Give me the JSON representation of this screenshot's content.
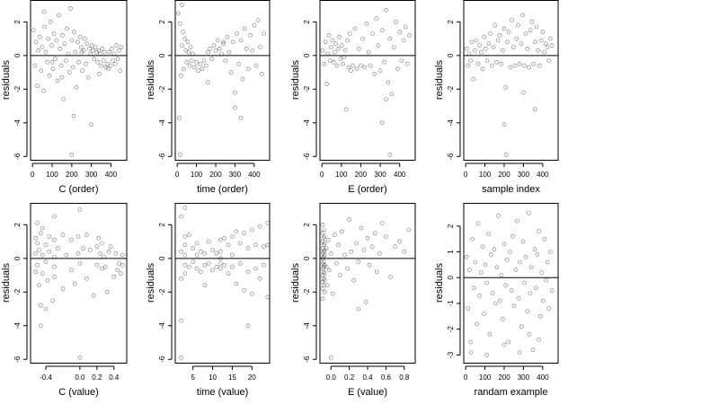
{
  "figure": {
    "colors": {
      "background": "#ffffff",
      "axes": "#000000",
      "points": "#000000"
    }
  },
  "chart_data": [
    {
      "type": "scatter",
      "xlabel": "C (order)",
      "ylabel": "residuals",
      "xlim": [
        -10,
        480
      ],
      "ylim": [
        -6.2,
        3.3
      ],
      "xticks": [
        0,
        100,
        200,
        300,
        400
      ],
      "xtick_labels": [
        "0",
        "100",
        "200",
        "300",
        "400"
      ],
      "yticks": [
        -6,
        -4,
        -2,
        0,
        2
      ],
      "ytick_labels": [
        "-6",
        "-4",
        "-2",
        "0",
        "2"
      ],
      "hline": 0,
      "marker": "open-circle",
      "x": [
        5,
        12,
        18,
        25,
        30,
        38,
        44,
        50,
        56,
        62,
        68,
        75,
        80,
        86,
        92,
        98,
        104,
        110,
        116,
        122,
        128,
        134,
        140,
        146,
        152,
        158,
        164,
        170,
        176,
        182,
        188,
        194,
        200,
        206,
        212,
        218,
        224,
        230,
        236,
        242,
        248,
        254,
        260,
        266,
        272,
        278,
        284,
        290,
        296,
        302,
        308,
        314,
        320,
        326,
        332,
        338,
        344,
        350,
        356,
        362,
        368,
        374,
        380,
        386,
        392,
        398,
        404,
        410,
        416,
        422,
        428,
        434,
        440,
        446,
        452,
        100,
        150,
        200,
        250,
        300,
        60,
        210,
        340
      ],
      "y": [
        1.5,
        -0.6,
        0.8,
        -1.8,
        0.3,
        1.1,
        -0.9,
        0.5,
        -2.1,
        1.7,
        0.2,
        -0.4,
        1.0,
        -1.2,
        2.0,
        0.6,
        -0.8,
        1.3,
        -0.2,
        0.9,
        -1.5,
        2.4,
        0.4,
        -0.6,
        1.2,
        -2.6,
        0.7,
        -0.3,
        1.6,
        0.1,
        -1.0,
        2.8,
        0.9,
        -0.7,
        1.4,
        0.2,
        -1.9,
        0.8,
        -0.4,
        1.1,
        0.5,
        -0.9,
        0.3,
        1.0,
        -0.5,
        0.7,
        -1.3,
        0.4,
        0.1,
        0.6,
        0.3,
        -0.2,
        0.5,
        0.2,
        -0.4,
        0.3,
        0.1,
        -0.6,
        0.4,
        -0.3,
        0.2,
        -0.7,
        -0.5,
        -0.8,
        0.2,
        -0.6,
        0.4,
        -0.3,
        0.1,
        -0.5,
        0.6,
        -0.2,
        0.3,
        -0.9,
        0.5,
        -0.4,
        -1.3,
        -5.9,
        0.2,
        -4.1,
        2.6,
        -3.6,
        -1.1
      ]
    },
    {
      "type": "scatter",
      "xlabel": "time (order)",
      "ylabel": "residuals",
      "xlim": [
        -10,
        480
      ],
      "ylim": [
        -6.2,
        3.3
      ],
      "xticks": [
        0,
        100,
        200,
        300,
        400
      ],
      "xtick_labels": [
        "0",
        "100",
        "200",
        "300",
        "400"
      ],
      "yticks": [
        -6,
        -4,
        -2,
        0,
        2
      ],
      "ytick_labels": [
        "-6",
        "-4",
        "-2",
        "0",
        "2"
      ],
      "hline": 0,
      "marker": "open-circle",
      "x": [
        5,
        10,
        15,
        20,
        25,
        30,
        35,
        40,
        45,
        50,
        55,
        60,
        65,
        70,
        75,
        80,
        90,
        100,
        110,
        120,
        130,
        140,
        150,
        160,
        170,
        180,
        190,
        200,
        210,
        220,
        230,
        240,
        250,
        260,
        270,
        280,
        290,
        300,
        310,
        320,
        330,
        340,
        350,
        360,
        370,
        380,
        390,
        400,
        410,
        420,
        430,
        440,
        450,
        15,
        25,
        300,
        330,
        160,
        240
      ],
      "y": [
        2.5,
        -3.7,
        1.9,
        -1.2,
        0.6,
        1.4,
        -0.8,
        1.0,
        0.3,
        -0.4,
        0.8,
        0.2,
        -0.6,
        0.5,
        -0.3,
        0.1,
        -0.7,
        -0.4,
        -0.9,
        -0.5,
        -0.8,
        -0.3,
        -0.6,
        0.2,
        0.4,
        -0.2,
        0.6,
        0.3,
        0.9,
        0.4,
        0.1,
        0.7,
        -0.3,
        1.1,
        0.2,
        -1.0,
        0.8,
        -2.2,
        1.3,
        -0.5,
        0.9,
        -1.4,
        1.6,
        0.4,
        -0.8,
        1.2,
        0.3,
        1.8,
        -0.6,
        2.1,
        0.5,
        -1.1,
        1.3,
        -5.9,
        3.0,
        -3.1,
        -3.7,
        -1.6,
        0.8
      ]
    },
    {
      "type": "scatter",
      "xlabel": "E (order)",
      "ylabel": "residuals",
      "xlim": [
        -10,
        480
      ],
      "ylim": [
        -6.2,
        3.3
      ],
      "xticks": [
        0,
        100,
        200,
        300,
        400
      ],
      "xtick_labels": [
        "0",
        "100",
        "200",
        "300",
        "400"
      ],
      "yticks": [
        -6,
        -4,
        -2,
        0,
        2
      ],
      "ytick_labels": [
        "-6",
        "-4",
        "-2",
        "0",
        "2"
      ],
      "hline": 0,
      "marker": "open-circle",
      "x": [
        5,
        12,
        18,
        25,
        30,
        36,
        42,
        48,
        54,
        60,
        66,
        72,
        78,
        84,
        90,
        96,
        102,
        108,
        114,
        120,
        126,
        132,
        138,
        144,
        150,
        160,
        170,
        180,
        190,
        200,
        210,
        220,
        230,
        240,
        250,
        260,
        270,
        280,
        290,
        300,
        310,
        320,
        330,
        340,
        350,
        360,
        370,
        380,
        390,
        400,
        410,
        420,
        430,
        440,
        450,
        350,
        310,
        330
      ],
      "y": [
        0.3,
        -0.5,
        0.8,
        -1.7,
        0.1,
        1.2,
        -0.3,
        0.5,
        0.9,
        -0.4,
        0.2,
        0.7,
        -0.6,
        0.4,
        1.1,
        -0.2,
        0.6,
        -0.5,
        -0.1,
        0.3,
        -3.2,
        0.9,
        -0.7,
        1.3,
        -0.9,
        -0.6,
        1.6,
        -0.8,
        0.4,
        -0.6,
        1.0,
        -0.7,
        1.9,
        0.2,
        -0.6,
        1.3,
        -1.1,
        2.2,
        0.6,
        -0.9,
        1.5,
        -0.4,
        2.7,
        -1.6,
        1.0,
        -2.3,
        0.5,
        2.0,
        -0.8,
        1.4,
        -0.3,
        0.9,
        1.7,
        -0.5,
        1.2,
        -5.9,
        -4.0,
        -2.6
      ]
    },
    {
      "type": "scatter",
      "xlabel": "sample index",
      "ylabel": "residuals",
      "xlim": [
        -10,
        480
      ],
      "ylim": [
        -6.2,
        3.3
      ],
      "xticks": [
        0,
        100,
        200,
        300,
        400
      ],
      "xtick_labels": [
        "0",
        "100",
        "200",
        "300",
        "400"
      ],
      "yticks": [
        -6,
        -4,
        -2,
        0,
        2
      ],
      "ytick_labels": [
        "-6",
        "-4",
        "-2",
        "0",
        "2"
      ],
      "hline": 0,
      "marker": "open-circle",
      "x": [
        5,
        12,
        18,
        25,
        32,
        40,
        48,
        56,
        64,
        72,
        80,
        88,
        96,
        104,
        112,
        120,
        128,
        136,
        144,
        152,
        160,
        168,
        176,
        184,
        192,
        200,
        208,
        216,
        224,
        232,
        240,
        248,
        256,
        264,
        272,
        280,
        288,
        296,
        304,
        312,
        320,
        328,
        336,
        344,
        352,
        360,
        368,
        376,
        384,
        392,
        400,
        408,
        416,
        424,
        432,
        440,
        448,
        200,
        210,
        360,
        300
      ],
      "y": [
        0.4,
        -0.6,
        0.1,
        -0.3,
        0.8,
        -1.4,
        0.3,
        0.9,
        -0.5,
        0.6,
        0.2,
        -0.8,
        1.1,
        0.4,
        -0.3,
        0.7,
        1.3,
        -0.6,
        0.5,
        1.8,
        -0.4,
        0.9,
        1.2,
        -0.5,
        0.3,
        1.6,
        -1.9,
        0.8,
        1.4,
        -0.7,
        2.1,
        0.5,
        -0.6,
        1.0,
        1.8,
        -0.5,
        0.7,
        2.4,
        -0.6,
        1.3,
        0.4,
        -0.7,
        1.5,
        2.0,
        -0.5,
        0.8,
        1.7,
        0.3,
        -0.6,
        0.9,
        1.4,
        0.2,
        0.7,
        0.5,
        -0.3,
        1.0,
        0.6,
        -4.1,
        -5.9,
        -3.2,
        -2.2
      ]
    },
    {
      "type": "scatter",
      "xlabel": "C (value)",
      "ylabel": "residuals",
      "xlim": [
        -0.58,
        0.55
      ],
      "ylim": [
        -6.2,
        3.3
      ],
      "xticks": [
        -0.4,
        0.0,
        0.2,
        0.4
      ],
      "xtick_labels": [
        "-0.4",
        "0.0",
        "0.2",
        "0.4"
      ],
      "yticks": [
        -6,
        -4,
        -2,
        0,
        2
      ],
      "ytick_labels": [
        "-6",
        "-4",
        "-2",
        "0",
        "2"
      ],
      "hline": 0,
      "marker": "open-circle",
      "x": [
        -0.52,
        -0.52,
        -0.52,
        -0.5,
        -0.5,
        -0.5,
        -0.48,
        -0.48,
        -0.46,
        -0.46,
        -0.44,
        -0.44,
        -0.44,
        -0.4,
        -0.4,
        -0.38,
        -0.36,
        -0.36,
        -0.32,
        -0.3,
        -0.3,
        -0.3,
        -0.3,
        -0.3,
        -0.26,
        -0.2,
        -0.2,
        -0.16,
        -0.1,
        -0.1,
        -0.06,
        -0.02,
        -0.02,
        0.0,
        0.0,
        0.04,
        0.08,
        0.08,
        0.12,
        0.16,
        0.2,
        0.2,
        0.22,
        0.24,
        0.26,
        0.26,
        0.28,
        0.3,
        0.32,
        0.34,
        0.36,
        0.4,
        0.42,
        0.44,
        0.46,
        0.48,
        0.5,
        0.5,
        -0.46,
        0.0,
        -0.4
      ],
      "y": [
        1.2,
        0.3,
        -0.8,
        2.1,
        -0.4,
        0.9,
        -1.6,
        0.5,
        -2.8,
        1.5,
        0.2,
        -0.9,
        1.8,
        -0.2,
        0.8,
        -1.3,
        0.4,
        1.3,
        -2.5,
        2.5,
        0.1,
        -0.5,
        1.1,
        -1.1,
        0.6,
        -1.8,
        1.4,
        0.2,
        -0.7,
        1.1,
        -1.5,
        0.3,
        1.3,
        -0.3,
        2.9,
        0.6,
        -1.2,
        1.4,
        0.5,
        -2.2,
        0.7,
        -0.4,
        1.2,
        0.3,
        -0.6,
        0.9,
        0.1,
        -0.5,
        -2.0,
        0.4,
        0.7,
        -1.1,
        0.3,
        -0.7,
        -0.3,
        -0.9,
        -0.4,
        0.2,
        -4.0,
        -5.9,
        -3.0
      ]
    },
    {
      "type": "scatter",
      "xlabel": "time (value)",
      "ylabel": "residuals",
      "xlim": [
        0.5,
        24.5
      ],
      "ylim": [
        -6.2,
        3.3
      ],
      "xticks": [
        5,
        10,
        15,
        20
      ],
      "xtick_labels": [
        "5",
        "10",
        "15",
        "20"
      ],
      "yticks": [
        -6,
        -4,
        -2,
        0,
        2
      ],
      "ytick_labels": [
        "-6",
        "-4",
        "-2",
        "0",
        "2"
      ],
      "hline": 0,
      "marker": "open-circle",
      "x": [
        2,
        2,
        2,
        2,
        3,
        3,
        3,
        3,
        3,
        4,
        4,
        5,
        5,
        6,
        6,
        6,
        7,
        7,
        8,
        8,
        8,
        9,
        9,
        10,
        10,
        11,
        11,
        12,
        12,
        12,
        12,
        13,
        13,
        14,
        14,
        15,
        15,
        15,
        16,
        16,
        17,
        17,
        18,
        18,
        19,
        19,
        20,
        20,
        21,
        21,
        22,
        22,
        23,
        23,
        24,
        24,
        24,
        2,
        3,
        19,
        12
      ],
      "y": [
        2.5,
        0.4,
        -1.2,
        -3.7,
        1.3,
        -0.4,
        0.8,
        -0.9,
        0.2,
        1.4,
        -0.5,
        0.6,
        -0.2,
        0.9,
        -0.6,
        0.2,
        -0.8,
        0.4,
        -1.6,
        0.3,
        -0.4,
        1.0,
        -0.3,
        -0.7,
        0.5,
        -0.5,
        0.3,
        -0.6,
        0.4,
        1.1,
        -0.3,
        1.2,
        -0.4,
        0.8,
        -0.9,
        1.3,
        -0.5,
        0.2,
        1.6,
        -1.5,
        0.9,
        -0.3,
        1.5,
        -1.9,
        0.6,
        -0.8,
        1.7,
        -2.1,
        0.8,
        -0.6,
        1.9,
        -1.2,
        0.7,
        -0.4,
        2.1,
        -2.3,
        0.8,
        -5.9,
        3.0,
        -4.0,
        0.0
      ]
    },
    {
      "type": "scatter",
      "xlabel": "E (value)",
      "ylabel": "residuals",
      "xlim": [
        -0.12,
        0.92
      ],
      "ylim": [
        -6.2,
        3.3
      ],
      "xticks": [
        0.0,
        0.2,
        0.4,
        0.6,
        0.8
      ],
      "xtick_labels": [
        "0.0",
        "0.2",
        "0.4",
        "0.6",
        "0.8"
      ],
      "yticks": [
        -6,
        -4,
        -2,
        0,
        2
      ],
      "ytick_labels": [
        "-6",
        "-4",
        "-2",
        "0",
        "2"
      ],
      "hline": 0,
      "marker": "open-circle",
      "x": [
        -0.09,
        -0.09,
        -0.09,
        -0.09,
        -0.09,
        -0.09,
        -0.09,
        -0.09,
        -0.09,
        -0.09,
        -0.09,
        -0.09,
        -0.08,
        -0.08,
        -0.08,
        -0.08,
        -0.08,
        -0.08,
        -0.08,
        -0.08,
        -0.08,
        -0.08,
        -0.07,
        -0.07,
        -0.07,
        -0.07,
        -0.07,
        -0.07,
        -0.07,
        -0.07,
        -0.05,
        -0.05,
        -0.04,
        -0.03,
        -0.02,
        0.0,
        0.02,
        0.04,
        0.06,
        0.08,
        0.1,
        0.12,
        0.15,
        0.18,
        0.2,
        0.22,
        0.25,
        0.28,
        0.3,
        0.33,
        0.36,
        0.38,
        0.4,
        0.42,
        0.45,
        0.48,
        0.5,
        0.53,
        0.56,
        0.6,
        0.65,
        0.7,
        0.75,
        0.8,
        0.85,
        0.0,
        0.3
      ],
      "y": [
        2.0,
        1.5,
        1.0,
        0.6,
        0.3,
        0.0,
        -0.3,
        -0.6,
        -1.0,
        -1.4,
        -1.8,
        -2.4,
        1.7,
        1.2,
        0.8,
        0.4,
        0.1,
        -0.2,
        -0.5,
        -0.8,
        -1.2,
        -1.6,
        1.3,
        0.9,
        0.5,
        0.2,
        -0.4,
        -0.9,
        -1.3,
        -2.0,
        -0.5,
        0.6,
        -1.6,
        1.1,
        -0.7,
        0.3,
        -2.1,
        1.4,
        -0.3,
        0.8,
        -1.0,
        1.6,
        0.2,
        -0.6,
        2.3,
        0.4,
        -1.3,
        0.9,
        -0.2,
        1.8,
        0.5,
        -2.6,
        1.2,
        -0.4,
        0.7,
        1.5,
        -0.8,
        0.3,
        2.1,
        1.3,
        -1.1,
        0.7,
        1.0,
        0.4,
        1.7,
        -5.9,
        -3.0
      ]
    },
    {
      "type": "scatter",
      "xlabel": "randam example",
      "ylabel": "residuals",
      "xlim": [
        -10,
        480
      ],
      "ylim": [
        -3.3,
        2.9
      ],
      "xticks": [
        0,
        100,
        200,
        300,
        400
      ],
      "xtick_labels": [
        "0",
        "100",
        "200",
        "300",
        "400"
      ],
      "yticks": [
        -3,
        -2,
        -1,
        0,
        1,
        2
      ],
      "ytick_labels": [
        "-3",
        "-2",
        "-1",
        "0",
        "1",
        "2"
      ],
      "hline": 0,
      "marker": "open-circle",
      "x": [
        5,
        12,
        20,
        28,
        35,
        42,
        50,
        58,
        65,
        72,
        80,
        88,
        95,
        102,
        110,
        118,
        125,
        132,
        140,
        148,
        155,
        162,
        170,
        178,
        185,
        192,
        200,
        208,
        215,
        222,
        230,
        238,
        245,
        252,
        260,
        268,
        275,
        282,
        290,
        298,
        305,
        312,
        320,
        328,
        335,
        342,
        350,
        358,
        365,
        372,
        380,
        388,
        395,
        402,
        410,
        418,
        425,
        432,
        440,
        448,
        25,
        110,
        200,
        280,
        330,
        380
      ],
      "y": [
        0.8,
        -1.2,
        0.3,
        -2.9,
        1.5,
        -0.4,
        0.6,
        -1.8,
        2.1,
        -0.7,
        0.2,
        1.2,
        -1.4,
        0.5,
        -0.2,
        1.7,
        -2.2,
        0.9,
        -0.6,
        1.1,
        -1.0,
        0.4,
        2.4,
        -0.9,
        0.1,
        -1.6,
        1.3,
        -0.3,
        0.7,
        -2.5,
        1.0,
        -0.5,
        1.6,
        -1.1,
        0.3,
        2.2,
        -0.8,
        0.6,
        -1.9,
        1.4,
        -0.2,
        0.8,
        -1.3,
        2.5,
        -0.6,
        0.4,
        -2.8,
        1.1,
        -0.4,
        0.9,
        1.8,
        -1.5,
        0.2,
        -0.9,
        1.5,
        -0.1,
        0.6,
        -1.2,
        1.0,
        -0.5,
        -2.5,
        -3.0,
        -2.6,
        -2.9,
        -2.2,
        -2.4
      ]
    }
  ]
}
